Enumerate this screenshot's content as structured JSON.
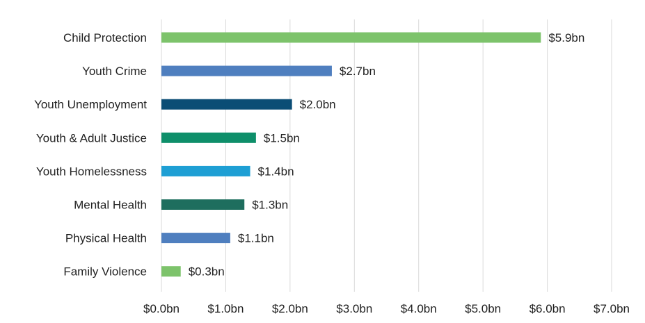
{
  "chart_data": {
    "type": "bar",
    "orientation": "horizontal",
    "categories": [
      "Child Protection",
      "Youth Crime",
      "Youth Unemployment",
      "Youth & Adult Justice",
      "Youth Homelessness",
      "Mental Health",
      "Physical Health",
      "Family Violence"
    ],
    "values": [
      5.9,
      2.65,
      2.03,
      1.47,
      1.38,
      1.29,
      1.07,
      0.3
    ],
    "data_labels": [
      "$5.9bn",
      "$2.7bn",
      "$2.0bn",
      "$1.5bn",
      "$1.4bn",
      "$1.3bn",
      "$1.1bn",
      "$0.3bn"
    ],
    "bar_colors": [
      "#7dc36b",
      "#4f7fbf",
      "#0b4d75",
      "#0e8f6a",
      "#1e9fd4",
      "#1e6e5e",
      "#4f7fbf",
      "#7dc36b"
    ],
    "x_ticks": [
      0,
      1,
      2,
      3,
      4,
      5,
      6,
      7
    ],
    "x_tick_labels": [
      "$0.0bn",
      "$1.0bn",
      "$2.0bn",
      "$3.0bn",
      "$4.0bn",
      "$5.0bn",
      "$6.0bn",
      "$7.0bn"
    ],
    "xlim": [
      0,
      7
    ],
    "grid": "vertical",
    "legend": "none",
    "title": "",
    "xlabel": "",
    "ylabel": ""
  }
}
